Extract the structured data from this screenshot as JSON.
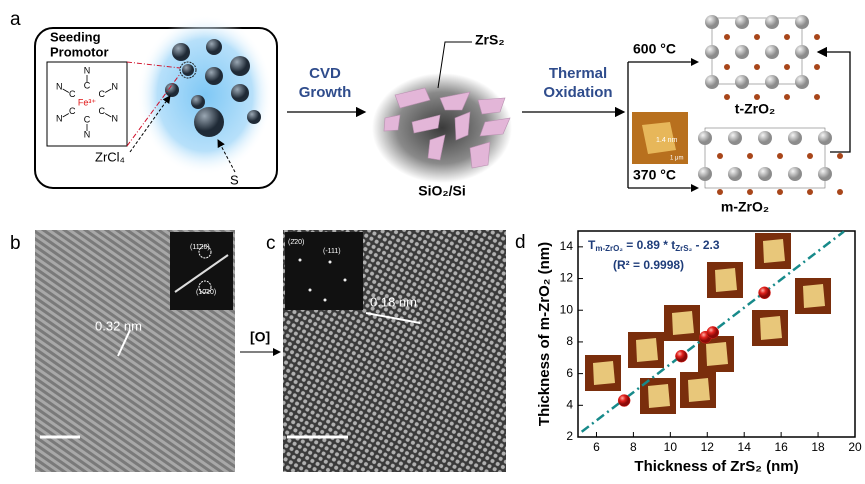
{
  "panel_a": {
    "label": "a",
    "seeding_promotor": [
      "Seeding",
      "Promotor"
    ],
    "complex": {
      "center": "Fe³⁺",
      "ligands": [
        [
          "C",
          "N"
        ],
        [
          "C",
          "N"
        ],
        [
          "C",
          "N"
        ],
        [
          "C",
          "N"
        ],
        [
          "C",
          "N"
        ],
        [
          "C",
          "N"
        ]
      ]
    },
    "precursor": "ZrCl₄",
    "sulfur": "S",
    "step1": [
      "CVD",
      "Growth"
    ],
    "flake": "ZrS₂",
    "substrate": "SiO₂/Si",
    "step2": [
      "Thermal",
      "Oxidation"
    ],
    "temp_high": "600 °C",
    "temp_low": "370 °C",
    "afm_height": "1.4 nm",
    "afm_scale": "1 μm",
    "tetragonal": "t-ZrO₂",
    "monoclinic": "m-ZrO₂"
  },
  "panel_b": {
    "label": "b",
    "spots": [
      "(11̄20)",
      "(10̄10)"
    ],
    "spacing": "0.32 nm"
  },
  "arrow": "[O]",
  "panel_c": {
    "label": "c",
    "spots": [
      "(2̄20)",
      "(-111)"
    ],
    "spacing": "0.18 nm"
  },
  "chart_data": {
    "type": "scatter",
    "label": "d",
    "xlabel": "Thickness of ZrS₂ (nm)",
    "ylabel": "Thickness of m-ZrO₂ (nm)",
    "equation": [
      "T",
      "m-ZrO₂",
      " = 0.89 * t",
      "ZrS₂",
      " - 2.3"
    ],
    "r2": "(R² = 0.9998)",
    "x": [
      7.5,
      10.6,
      11.9,
      12.3,
      15.1
    ],
    "values": [
      4.3,
      7.1,
      8.3,
      8.6,
      11.1
    ],
    "color": "#e0201b",
    "fit_line": {
      "x": [
        5.2,
        19.4
      ],
      "y": [
        2.33,
        14.97
      ],
      "color": "#178a8a"
    },
    "xlim": [
      5,
      20
    ],
    "ylim": [
      2,
      15
    ],
    "xticks": [
      6,
      8,
      10,
      12,
      14,
      16,
      18,
      20
    ],
    "yticks": [
      2,
      4,
      6,
      8,
      10,
      12,
      14
    ]
  }
}
